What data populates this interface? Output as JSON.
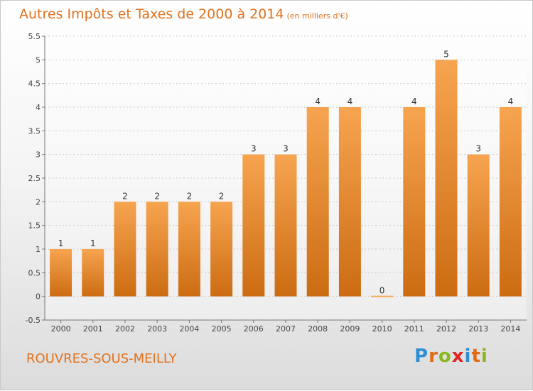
{
  "header": {
    "title": "Autres Impôts et Taxes de 2000 à 2014",
    "subtitle": "(en milliers d'€)"
  },
  "footer": {
    "commune": "ROUVRES-SOUS-MEILLY",
    "logo_letters": [
      "P",
      "r",
      "o",
      "x",
      "i",
      "t",
      "i"
    ],
    "logo_colors": [
      "#2e8fd6",
      "#e06b12",
      "#8ab81e",
      "#e02424",
      "#2e8fd6",
      "#e06b12",
      "#8ab81e"
    ]
  },
  "colors": {
    "bar_top": "#f7a450",
    "bar_bottom": "#cc6c12",
    "title": "#e0721e"
  },
  "chart_data": {
    "type": "bar",
    "title": "Autres Impôts et Taxes de 2000 à 2014",
    "categories": [
      "2000",
      "2001",
      "2002",
      "2003",
      "2004",
      "2005",
      "2006",
      "2007",
      "2008",
      "2009",
      "2010",
      "2011",
      "2012",
      "2013",
      "2014"
    ],
    "values": [
      1,
      1,
      2,
      2,
      2,
      2,
      3,
      3,
      4,
      4,
      0,
      4,
      5,
      3,
      4
    ],
    "value_labels": [
      "1",
      "1",
      "2",
      "2",
      "2",
      "2",
      "3",
      "3",
      "4",
      "4",
      "0",
      "4",
      "5",
      "3",
      "4"
    ],
    "ylim": [
      -0.5,
      5.5
    ],
    "yticks": [
      -0.5,
      0,
      0.5,
      1,
      1.5,
      2,
      2.5,
      3,
      3.5,
      4,
      4.5,
      5,
      5.5
    ],
    "ytick_labels": [
      "-0.5",
      "0",
      "0.5",
      "1",
      "1.5",
      "2",
      "2.5",
      "3",
      "3.5",
      "4",
      "4.5",
      "5",
      "5.5"
    ],
    "grid": true,
    "legend": "none"
  }
}
